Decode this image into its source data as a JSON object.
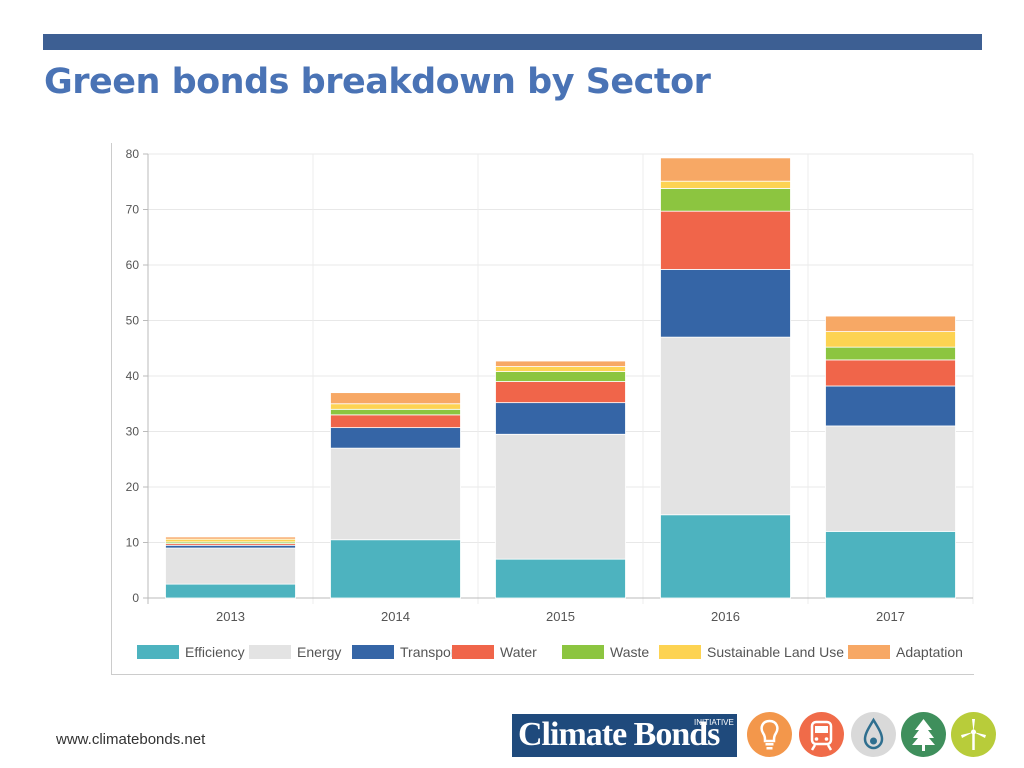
{
  "slide": {
    "title": "Green bonds breakdown by Sector",
    "footer_url": "www.climatebonds.net",
    "logo_text": "Climate Bonds",
    "logo_small": "INITIATIVE",
    "sector_icons": [
      {
        "name": "lightbulb-icon",
        "color": "#f3974b"
      },
      {
        "name": "train-icon",
        "color": "#f06b49"
      },
      {
        "name": "water-drop-icon",
        "color": "#d9d9d9"
      },
      {
        "name": "tree-icon",
        "color": "#3f8f5c"
      },
      {
        "name": "wind-turbine-icon",
        "color": "#b8cc3a"
      }
    ],
    "colors": {
      "accent": "#3d5f93",
      "title": "#4a73b5",
      "logo_bg": "#1f4a7c"
    }
  },
  "chart_data": {
    "type": "bar",
    "stacked": true,
    "categories": [
      "2013",
      "2014",
      "2015",
      "2016",
      "2017"
    ],
    "ylim": [
      0,
      80
    ],
    "yticks": [
      "0",
      "10",
      "20",
      "30",
      "40",
      "50",
      "60",
      "70",
      "80"
    ],
    "grid": true,
    "legend_position": "bottom",
    "series": [
      {
        "name": "Efficiency",
        "color": "#4db3bf",
        "values": [
          2.5,
          10.5,
          7,
          15,
          12
        ]
      },
      {
        "name": "Energy",
        "color": "#e3e3e3",
        "values": [
          6.5,
          16.5,
          22.5,
          32,
          19
        ]
      },
      {
        "name": "Transport",
        "color": "#3565a6",
        "values": [
          0.5,
          3.7,
          5.7,
          12.2,
          7.2
        ]
      },
      {
        "name": "Water",
        "color": "#f0654a",
        "values": [
          0.3,
          2.3,
          3.8,
          10.5,
          4.7
        ]
      },
      {
        "name": "Waste",
        "color": "#8cc540",
        "values": [
          0.3,
          1,
          1.8,
          4.1,
          2.3
        ]
      },
      {
        "name": "Sustainable Land Use",
        "color": "#fdd352",
        "values": [
          0.5,
          1,
          0.9,
          1.3,
          2.8
        ]
      },
      {
        "name": "Adaptation",
        "color": "#f7a865",
        "values": [
          0.4,
          2,
          1,
          4.2,
          2.8
        ]
      }
    ]
  }
}
